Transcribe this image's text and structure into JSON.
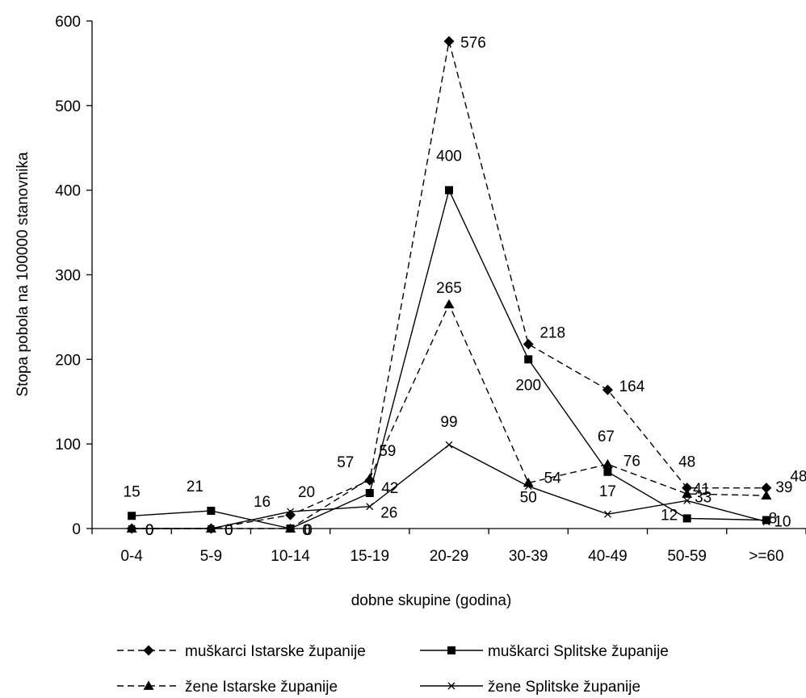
{
  "chart_data": {
    "type": "line",
    "xlabel": "dobne skupine (godina)",
    "ylabel": "Stopa pobola na 100000 stanovnika",
    "ylim": [
      0,
      600
    ],
    "yticks": [
      0,
      100,
      200,
      300,
      400,
      500,
      600
    ],
    "categories": [
      "0-4",
      "5-9",
      "10-14",
      "15-19",
      "20-29",
      "30-39",
      "40-49",
      "50-59",
      ">=60"
    ],
    "grid": false,
    "legend_position": "bottom",
    "series": [
      {
        "name": "muškarci Istarske županije",
        "values": [
          0,
          0,
          16,
          57,
          576,
          218,
          164,
          48,
          48
        ],
        "labels": [
          "0",
          "0",
          "16",
          "57",
          "576",
          "218",
          "164",
          "48",
          "48"
        ],
        "line_style": "dashed",
        "marker": "diamond"
      },
      {
        "name": "muškarci Splitske županije",
        "values": [
          15,
          21,
          0,
          42,
          400,
          200,
          67,
          12,
          10
        ],
        "labels": [
          "15",
          "21",
          "0",
          "42",
          "400",
          "200",
          "67",
          "12",
          "10"
        ],
        "line_style": "solid",
        "marker": "square"
      },
      {
        "name": "žene Istarske županije",
        "values": [
          0,
          0,
          0,
          59,
          265,
          54,
          76,
          41,
          39
        ],
        "labels": [
          "0",
          "0",
          "0",
          "59",
          "265",
          "54",
          "76",
          "41",
          "39"
        ],
        "line_style": "dashed",
        "marker": "triangle"
      },
      {
        "name": "žene Splitske županije",
        "values": [
          0,
          0,
          20,
          26,
          99,
          50,
          17,
          33,
          8
        ],
        "labels": [
          "0",
          "0",
          "20",
          "26",
          "99",
          "50",
          "17",
          "33",
          "8"
        ],
        "line_style": "solid",
        "marker": "x"
      }
    ],
    "colors": {
      "line": "#000000",
      "background": "#ffffff"
    }
  }
}
